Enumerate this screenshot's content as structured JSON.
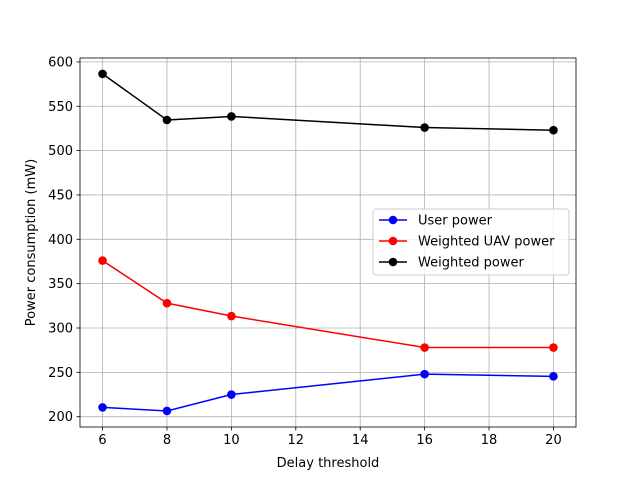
{
  "chart_data": {
    "type": "line",
    "title": "",
    "xlabel": "Delay threshold",
    "ylabel": "Power consumption (mW)",
    "xlim": [
      5.3,
      20.7
    ],
    "ylim": [
      188.4,
      604.4
    ],
    "xticks": [
      6,
      8,
      10,
      12,
      14,
      16,
      18,
      20
    ],
    "yticks": [
      200,
      250,
      300,
      350,
      400,
      450,
      500,
      550,
      600
    ],
    "grid": true,
    "legend_position": "center-right",
    "x": [
      6,
      8,
      10,
      16,
      20
    ],
    "series": [
      {
        "name": "User power",
        "color": "#0000ff",
        "values": [
          210.5,
          206.5,
          225.0,
          248.0,
          245.5
        ]
      },
      {
        "name": "Weighted UAV power",
        "color": "#ff0000",
        "values": [
          376.0,
          328.0,
          313.5,
          278.0,
          278.0
        ]
      },
      {
        "name": "Weighted power",
        "color": "#000000",
        "values": [
          586.5,
          534.5,
          538.5,
          526.0,
          523.0
        ]
      }
    ]
  }
}
